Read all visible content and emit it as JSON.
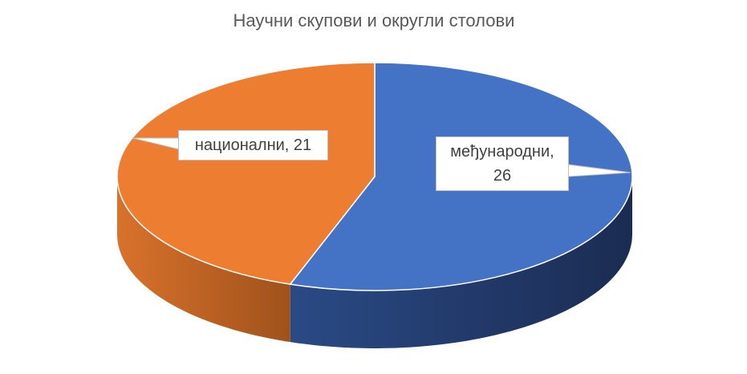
{
  "chart_data": {
    "type": "pie3d",
    "title": "Научни скупови и округли столови",
    "categories": [
      "међународни",
      "национални"
    ],
    "values": [
      26,
      21
    ],
    "value_labels": [
      "међународни, 26",
      "национални, 21"
    ],
    "colors": [
      "#4472c4",
      "#ed7d31"
    ],
    "side_colors": [
      [
        "#2a4a86",
        "#1b2c52"
      ],
      [
        "#d8722c",
        "#a0521b"
      ]
    ]
  }
}
